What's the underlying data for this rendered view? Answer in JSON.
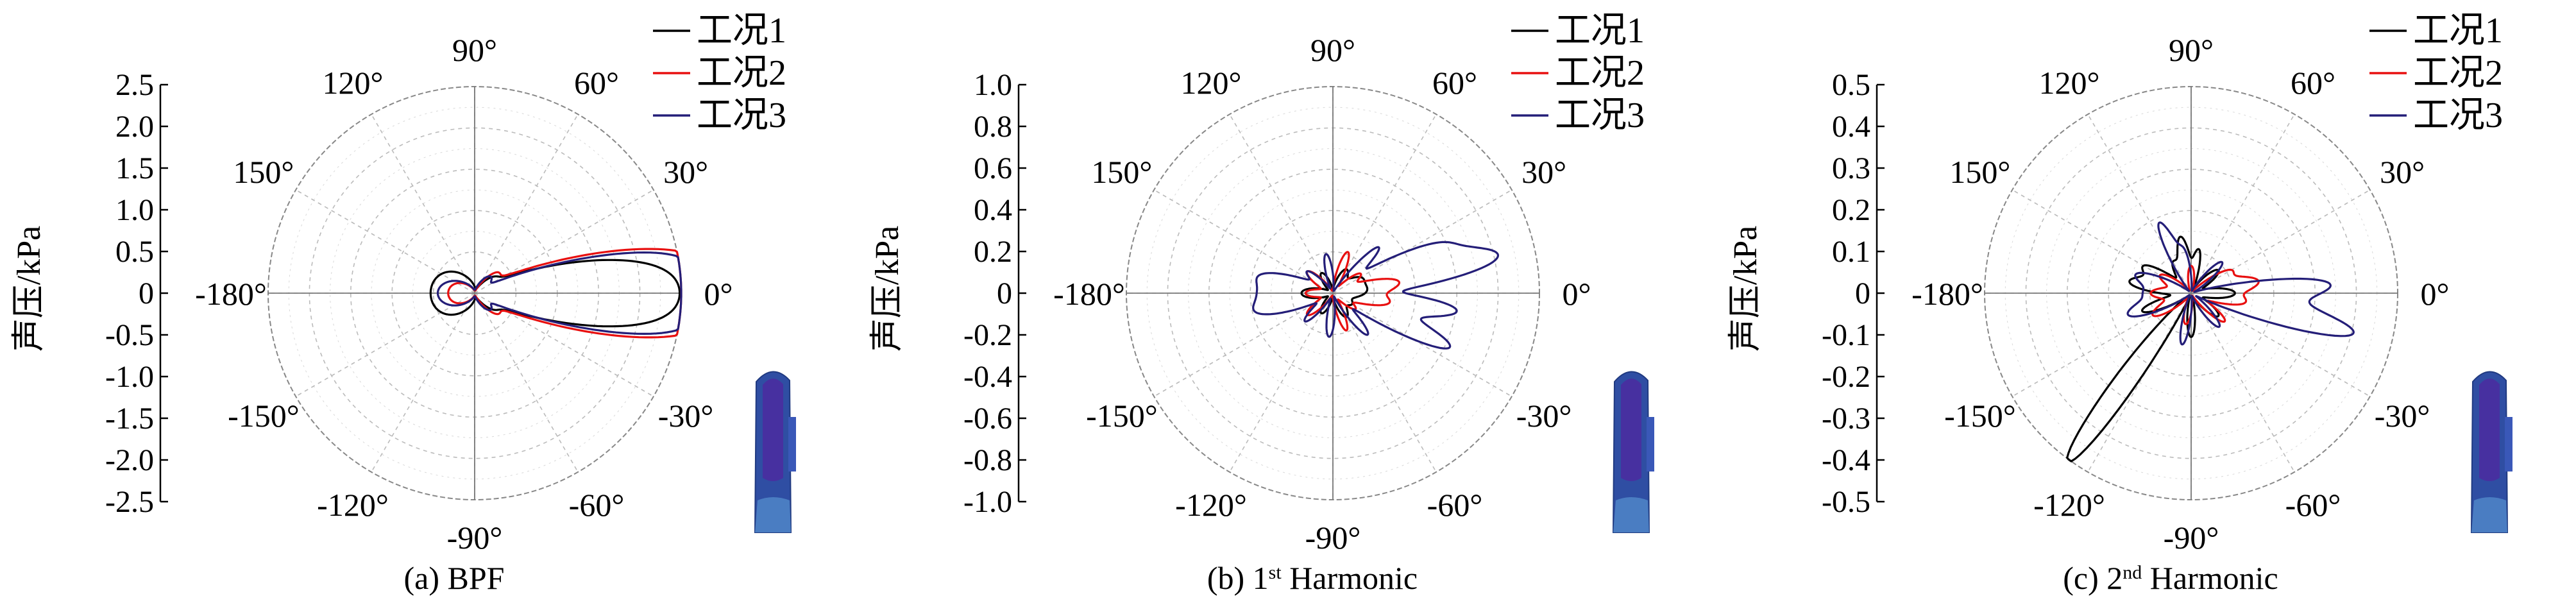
{
  "chart_data": [
    {
      "type": "polar",
      "caption": "(a) BPF",
      "ylabel": "声压/kPa",
      "rlim": [
        -2.5,
        2.5
      ],
      "y_ticks": [
        "2.5",
        "2.0",
        "1.5",
        "1.0",
        "0.5",
        "0",
        "-0.5",
        "-1.0",
        "-1.5",
        "-2.0",
        "-2.5"
      ],
      "angle_labels": [
        {
          "deg": 0,
          "text": "0°"
        },
        {
          "deg": 30,
          "text": "30°"
        },
        {
          "deg": 60,
          "text": "60°"
        },
        {
          "deg": 90,
          "text": "90°"
        },
        {
          "deg": 120,
          "text": "120°"
        },
        {
          "deg": 150,
          "text": "150°"
        },
        {
          "deg": 180,
          "text": "-180°"
        },
        {
          "deg": -150,
          "text": "-150°"
        },
        {
          "deg": -120,
          "text": "-120°"
        },
        {
          "deg": -90,
          "text": "-90°"
        },
        {
          "deg": -60,
          "text": "-60°"
        },
        {
          "deg": -30,
          "text": "-30°"
        }
      ],
      "grid": true,
      "legend": {
        "position": "top-right",
        "entries": [
          "工况1",
          "工况2",
          "工况3"
        ]
      },
      "series": [
        {
          "name": "工况1",
          "color": "#000000",
          "lobes": [
            [
              8,
              1.8,
              9
            ],
            [
              -8,
              1.8,
              9
            ],
            [
              35,
              0.3,
              14
            ],
            [
              -35,
              0.3,
              14
            ],
            [
              150,
              0.25,
              30
            ],
            [
              -150,
              0.25,
              30
            ],
            [
              180,
              0.2,
              40
            ]
          ]
        },
        {
          "name": "工况2",
          "color": "#e81010",
          "lobes": [
            [
              9,
              2.4,
              9
            ],
            [
              -9,
              2.4,
              9
            ],
            [
              40,
              0.35,
              12
            ],
            [
              -40,
              0.35,
              12
            ],
            [
              160,
              0.2,
              25
            ],
            [
              -160,
              0.2,
              25
            ]
          ]
        },
        {
          "name": "工况3",
          "color": "#241e78",
          "lobes": [
            [
              9,
              2.35,
              8
            ],
            [
              -9,
              2.35,
              8
            ],
            [
              45,
              0.25,
              15
            ],
            [
              -45,
              0.25,
              15
            ],
            [
              170,
              0.22,
              30
            ],
            [
              -170,
              0.22,
              30
            ]
          ]
        }
      ]
    },
    {
      "type": "polar",
      "caption": "(b) 1st Harmonic",
      "ylabel": "声压/kPa",
      "rlim": [
        -1.0,
        1.0
      ],
      "y_ticks": [
        "1.0",
        "0.8",
        "0.6",
        "0.4",
        "0.2",
        "0",
        "-0.2",
        "-0.4",
        "-0.6",
        "-0.8",
        "-1.0"
      ],
      "angle_labels": [
        {
          "deg": 0,
          "text": "0°"
        },
        {
          "deg": 30,
          "text": "30°"
        },
        {
          "deg": 60,
          "text": "60°"
        },
        {
          "deg": 90,
          "text": "90°"
        },
        {
          "deg": 120,
          "text": "120°"
        },
        {
          "deg": 150,
          "text": "150°"
        },
        {
          "deg": 180,
          "text": "-180°"
        },
        {
          "deg": -150,
          "text": "-150°"
        },
        {
          "deg": -120,
          "text": "-120°"
        },
        {
          "deg": -90,
          "text": "-90°"
        },
        {
          "deg": -60,
          "text": "-60°"
        },
        {
          "deg": -30,
          "text": "-30°"
        }
      ],
      "grid": true,
      "legend": {
        "position": "top-right",
        "entries": [
          "工况1",
          "工况2",
          "工况3"
        ]
      },
      "series": [
        {
          "name": "工况1",
          "color": "#000000",
          "lobes": [
            [
              5,
              0.15,
              15
            ],
            [
              60,
              0.12,
              12
            ],
            [
              120,
              0.1,
              12
            ],
            [
              180,
              0.14,
              14
            ],
            [
              -60,
              0.12,
              12
            ],
            [
              -120,
              0.1,
              12
            ],
            [
              -30,
              0.08,
              10
            ],
            [
              30,
              0.1,
              10
            ]
          ]
        },
        {
          "name": "工况2",
          "color": "#e81010",
          "lobes": [
            [
              10,
              0.3,
              8
            ],
            [
              -10,
              0.25,
              8
            ],
            [
              70,
              0.2,
              8
            ],
            [
              -70,
              0.18,
              8
            ],
            [
              140,
              0.15,
              10
            ],
            [
              -140,
              0.15,
              10
            ],
            [
              180,
              0.12,
              12
            ],
            [
              35,
              0.15,
              8
            ],
            [
              -35,
              0.12,
              8
            ]
          ]
        },
        {
          "name": "工况3",
          "color": "#241e78",
          "lobes": [
            [
              12,
              0.75,
              6
            ],
            [
              -8,
              0.58,
              6
            ],
            [
              25,
              0.5,
              6
            ],
            [
              -25,
              0.6,
              6
            ],
            [
              45,
              0.3,
              6
            ],
            [
              -50,
              0.25,
              7
            ],
            [
              100,
              0.18,
              8
            ],
            [
              -95,
              0.2,
              8
            ],
            [
              165,
              0.3,
              8
            ],
            [
              -165,
              0.32,
              8
            ],
            [
              180,
              0.25,
              8
            ],
            [
              140,
              0.15,
              8
            ],
            [
              -135,
              0.18,
              8
            ]
          ]
        }
      ]
    },
    {
      "type": "polar",
      "caption": "(c) 2nd Harmonic",
      "ylabel": "声压/kPa",
      "rlim": [
        -0.5,
        0.5
      ],
      "y_ticks": [
        "0.5",
        "0.4",
        "0.3",
        "0.2",
        "0.1",
        "0",
        "-0.1",
        "-0.2",
        "-0.3",
        "-0.4",
        "-0.5"
      ],
      "angle_labels": [
        {
          "deg": 0,
          "text": "0°"
        },
        {
          "deg": 30,
          "text": "30°"
        },
        {
          "deg": 60,
          "text": "60°"
        },
        {
          "deg": 90,
          "text": "90°"
        },
        {
          "deg": 120,
          "text": "120°"
        },
        {
          "deg": 150,
          "text": "150°"
        },
        {
          "deg": 180,
          "text": "-180°"
        },
        {
          "deg": -150,
          "text": "-150°"
        },
        {
          "deg": -120,
          "text": "-120°"
        },
        {
          "deg": -90,
          "text": "-90°"
        },
        {
          "deg": -60,
          "text": "-60°"
        },
        {
          "deg": -30,
          "text": "-30°"
        }
      ],
      "grid": true,
      "legend": {
        "position": "top-right",
        "entries": [
          "工况1",
          "工况2",
          "工况3"
        ]
      },
      "series": [
        {
          "name": "工况1",
          "color": "#000000",
          "lobes": [
            [
              -125,
              0.35,
              4
            ],
            [
              -130,
              0.22,
              5
            ],
            [
              150,
              0.12,
              8
            ],
            [
              170,
              0.14,
              8
            ],
            [
              -160,
              0.12,
              8
            ],
            [
              100,
              0.12,
              7
            ],
            [
              80,
              0.1,
              7
            ],
            [
              -90,
              0.1,
              8
            ],
            [
              0,
              0.1,
              10
            ],
            [
              40,
              0.08,
              10
            ],
            [
              -40,
              0.08,
              10
            ],
            [
              120,
              0.08,
              10
            ]
          ]
        },
        {
          "name": "工况2",
          "color": "#e81010",
          "lobes": [
            [
              10,
              0.15,
              8
            ],
            [
              -10,
              0.12,
              8
            ],
            [
              30,
              0.1,
              8
            ],
            [
              -40,
              0.1,
              8
            ],
            [
              150,
              0.08,
              10
            ],
            [
              -150,
              0.1,
              10
            ],
            [
              90,
              0.06,
              10
            ],
            [
              -100,
              0.07,
              10
            ],
            [
              180,
              0.09,
              10
            ]
          ]
        },
        {
          "name": "工况3",
          "color": "#241e78",
          "lobes": [
            [
              -15,
              0.34,
              5
            ],
            [
              5,
              0.27,
              5
            ],
            [
              -5,
              0.2,
              6
            ],
            [
              115,
              0.17,
              6
            ],
            [
              100,
              0.1,
              7
            ],
            [
              -100,
              0.12,
              7
            ],
            [
              160,
              0.12,
              8
            ],
            [
              -160,
              0.14,
              8
            ],
            [
              45,
              0.1,
              8
            ],
            [
              -50,
              0.1,
              8
            ],
            [
              180,
              0.1,
              10
            ]
          ]
        }
      ]
    }
  ]
}
